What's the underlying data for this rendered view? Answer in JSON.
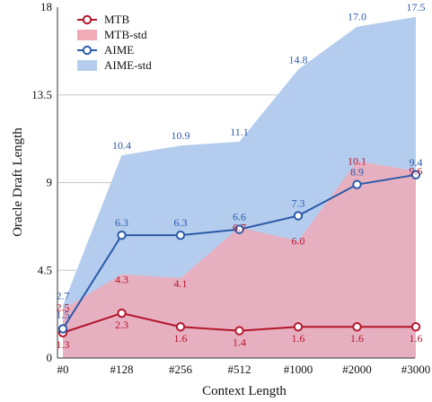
{
  "chart_data": {
    "type": "line",
    "xlabel": "Context Length",
    "ylabel": "Oracle Draft Length",
    "ylim": [
      0,
      18
    ],
    "yticks": [
      "0",
      "4.5",
      "9",
      "13.5",
      "18"
    ],
    "categories": [
      "#0",
      "#128",
      "#256",
      "#512",
      "#1000",
      "#2000",
      "#3000"
    ],
    "grid": "horizontal",
    "legend_position": "top-left",
    "series": [
      {
        "name": "MTB",
        "color": "#b5152b",
        "values": [
          1.3,
          2.3,
          1.6,
          1.4,
          1.6,
          1.6,
          1.6
        ],
        "std_name": "MTB-std",
        "std_color": "#f0aab8",
        "std_upper": [
          2.5,
          4.3,
          4.1,
          6.7,
          6.0,
          10.1,
          9.6
        ],
        "std_lower": [
          0,
          0,
          0,
          0,
          0,
          0,
          0
        ],
        "labels": [
          "1.3",
          "2.3",
          "1.6",
          "1.4",
          "1.6",
          "1.6",
          "1.6"
        ],
        "upper_labels": [
          "2.5",
          "4.3",
          "4.1",
          "6.7",
          "6.0",
          "10.1",
          "9.6"
        ]
      },
      {
        "name": "AIME",
        "color": "#2c5aa8",
        "values": [
          1.5,
          6.3,
          6.3,
          6.6,
          7.3,
          8.9,
          9.4
        ],
        "std_name": "AIME-std",
        "std_color": "#b4cdee",
        "std_upper": [
          2.7,
          10.4,
          10.9,
          11.1,
          14.8,
          17.0,
          17.5
        ],
        "std_lower": [
          0,
          0,
          0,
          0,
          0,
          0,
          0
        ],
        "labels": [
          "1.5",
          "6.3",
          "6.3",
          "6.6",
          "7.3",
          "8.9",
          "9.4"
        ],
        "upper_labels": [
          "2.7",
          "10.4",
          "10.9",
          "11.1",
          "14.8",
          "17.0",
          "17.5"
        ]
      }
    ]
  }
}
